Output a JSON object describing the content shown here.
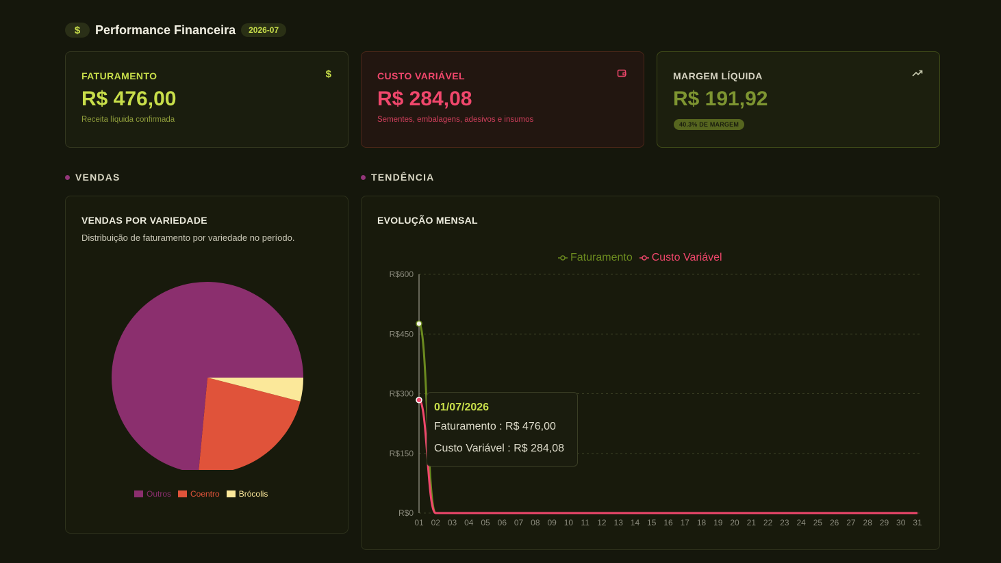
{
  "header": {
    "icon": "dollar-icon",
    "title": "Performance Financeira",
    "period": "2026-07"
  },
  "cards": {
    "faturamento": {
      "label": "FATURAMENTO",
      "value": "R$ 476,00",
      "sub": "Receita líquida confirmada",
      "icon": "dollar-icon",
      "color": "#c8de4a"
    },
    "custo": {
      "label": "CUSTO VARIÁVEL",
      "value": "R$ 284,08",
      "sub": "Sementes, embalagens, adesivos e insumos",
      "icon": "wallet-icon",
      "color": "#f0476c"
    },
    "margem": {
      "label": "MARGEM LÍQUIDA",
      "value": "R$ 191,92",
      "badge": "40.3% DE MARGEM",
      "icon": "trending-up-icon",
      "color": "#7e9531"
    }
  },
  "sections": {
    "vendas": "VENDAS",
    "tendencia": "TENDÊNCIA"
  },
  "sales_panel": {
    "title": "VENDAS POR VARIEDADE",
    "description": "Distribuição de faturamento por variedade no período."
  },
  "trend_panel": {
    "title": "EVOLUÇÃO MENSAL"
  },
  "tooltip": {
    "date": "01/07/2026",
    "faturamento": "Faturamento : R$ 476,00",
    "custo": "Custo Variável : R$ 284,08"
  },
  "chart_data": [
    {
      "type": "pie",
      "categories": [
        "Outros",
        "Coentro",
        "Brócolis"
      ],
      "values": [
        73.5,
        22.5,
        4.0
      ],
      "colors": [
        "#8b2f6e",
        "#e0533a",
        "#fbe89a"
      ],
      "legend": "bottom"
    },
    {
      "type": "line",
      "x": [
        "01",
        "02",
        "03",
        "04",
        "05",
        "06",
        "07",
        "08",
        "09",
        "10",
        "11",
        "12",
        "13",
        "14",
        "15",
        "16",
        "17",
        "18",
        "19",
        "20",
        "21",
        "22",
        "23",
        "24",
        "25",
        "26",
        "27",
        "28",
        "29",
        "30",
        "31"
      ],
      "series": [
        {
          "name": "Faturamento",
          "color": "#6b8a1f",
          "values": [
            476,
            0,
            0,
            0,
            0,
            0,
            0,
            0,
            0,
            0,
            0,
            0,
            0,
            0,
            0,
            0,
            0,
            0,
            0,
            0,
            0,
            0,
            0,
            0,
            0,
            0,
            0,
            0,
            0,
            0,
            0
          ]
        },
        {
          "name": "Custo Variável",
          "color": "#f0476c",
          "values": [
            284.08,
            0,
            0,
            0,
            0,
            0,
            0,
            0,
            0,
            0,
            0,
            0,
            0,
            0,
            0,
            0,
            0,
            0,
            0,
            0,
            0,
            0,
            0,
            0,
            0,
            0,
            0,
            0,
            0,
            0,
            0
          ]
        }
      ],
      "ylim": [
        0,
        600
      ],
      "yticks": [
        0,
        150,
        300,
        450,
        600
      ],
      "ytick_labels": [
        "R$0",
        "R$150",
        "R$300",
        "R$450",
        "R$600"
      ],
      "grid": true,
      "legend": "top-center"
    }
  ]
}
